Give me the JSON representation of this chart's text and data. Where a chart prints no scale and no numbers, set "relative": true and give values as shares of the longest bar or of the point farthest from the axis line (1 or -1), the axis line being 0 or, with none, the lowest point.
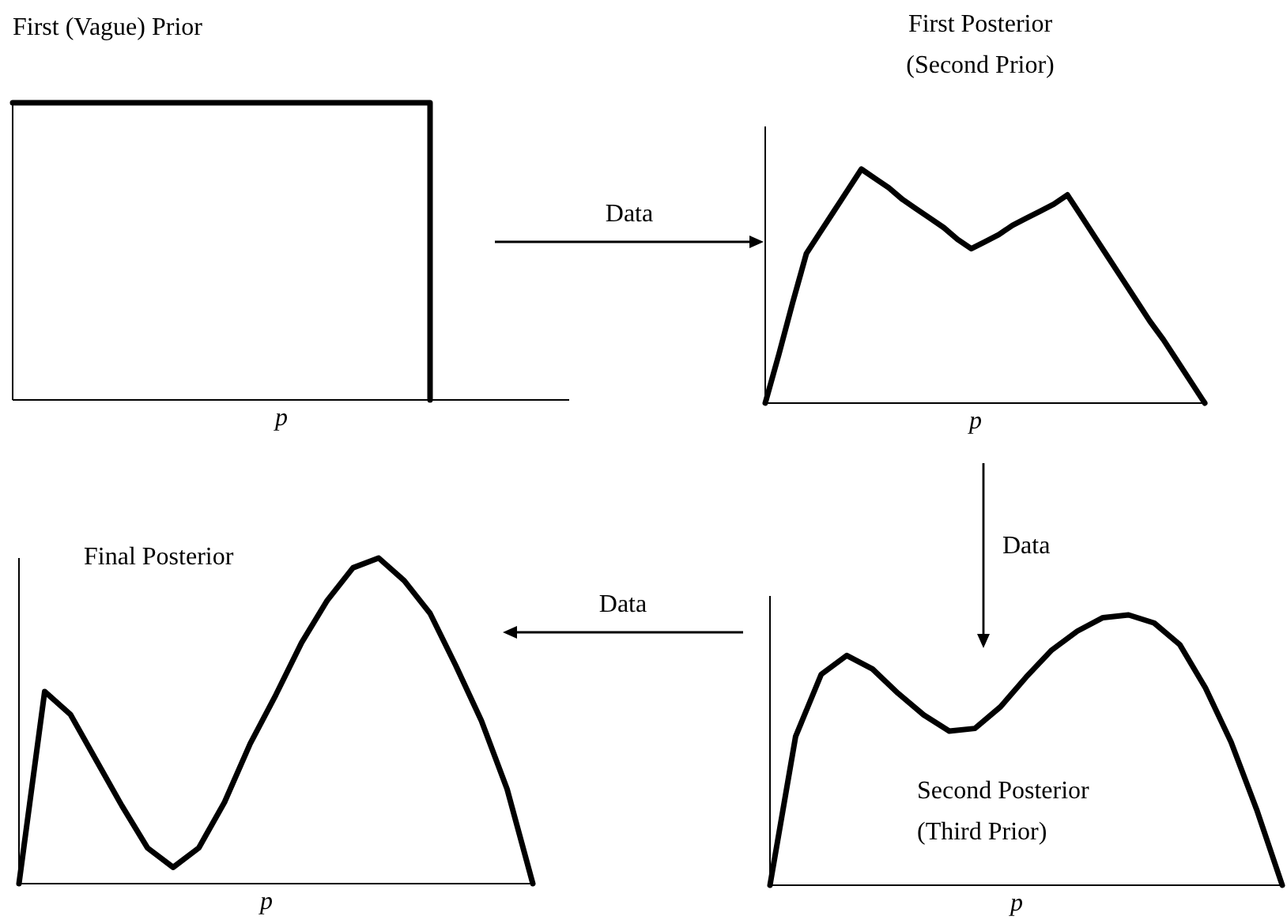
{
  "chart_data": [
    {
      "type": "step",
      "title": "First (Vague) Prior",
      "xlabel": "p",
      "relative": true,
      "categories": [
        null,
        null,
        null,
        null,
        null
      ],
      "series": [
        {
          "color": "#000000",
          "values": [
            1,
            1,
            1,
            0,
            null
          ]
        }
      ]
    },
    {
      "type": "line",
      "title": "First Posterior\n(Second Prior)",
      "xlabel": "p",
      "relative": true,
      "categories": [
        null,
        null,
        null,
        null,
        null,
        null,
        null,
        null,
        null,
        null,
        null,
        null,
        null,
        null,
        null,
        null,
        null,
        null,
        null,
        null,
        null,
        null,
        null,
        null,
        null,
        null,
        null,
        null,
        null,
        null,
        null,
        null,
        null
      ],
      "series": [
        {
          "color": "#000000",
          "values": [
            0,
            0.21,
            0.43,
            0.64,
            0.73,
            0.82,
            0.91,
            1,
            0.96,
            0.92,
            0.87,
            0.83,
            0.79,
            0.75,
            0.7,
            0.66,
            0.69,
            0.72,
            0.76,
            0.79,
            0.82,
            0.85,
            0.89,
            0.8,
            0.71,
            0.62,
            0.53,
            0.44,
            0.35,
            0.27,
            0.18,
            0.09,
            0
          ]
        }
      ],
      "annotations": [
        "Data"
      ]
    },
    {
      "type": "line",
      "title": "Second Posterior\n(Third Prior)",
      "xlabel": "p",
      "relative": true,
      "categories": [
        null,
        null,
        null,
        null,
        null,
        null,
        null,
        null,
        null,
        null,
        null,
        null,
        null,
        null,
        null,
        null,
        null,
        null,
        null,
        null,
        null
      ],
      "series": [
        {
          "color": "#000000",
          "values": [
            0,
            0.55,
            0.78,
            0.85,
            0.8,
            0.71,
            0.63,
            0.57,
            0.58,
            0.66,
            0.77,
            0.87,
            0.94,
            0.99,
            1,
            0.97,
            0.89,
            0.73,
            0.53,
            0.28,
            0
          ]
        }
      ],
      "annotations": [
        "Data"
      ]
    },
    {
      "type": "line",
      "title": "Final Posterior",
      "xlabel": "p",
      "relative": true,
      "categories": [
        null,
        null,
        null,
        null,
        null,
        null,
        null,
        null,
        null,
        null,
        null,
        null,
        null,
        null,
        null,
        null,
        null,
        null,
        null,
        null,
        null
      ],
      "series": [
        {
          "color": "#000000",
          "values": [
            0,
            0.59,
            0.52,
            0.38,
            0.24,
            0.11,
            0.05,
            0.11,
            0.25,
            0.43,
            0.58,
            0.74,
            0.87,
            0.97,
            1,
            0.93,
            0.83,
            0.67,
            0.5,
            0.29,
            0
          ]
        }
      ],
      "annotations": [
        "Data"
      ]
    }
  ]
}
